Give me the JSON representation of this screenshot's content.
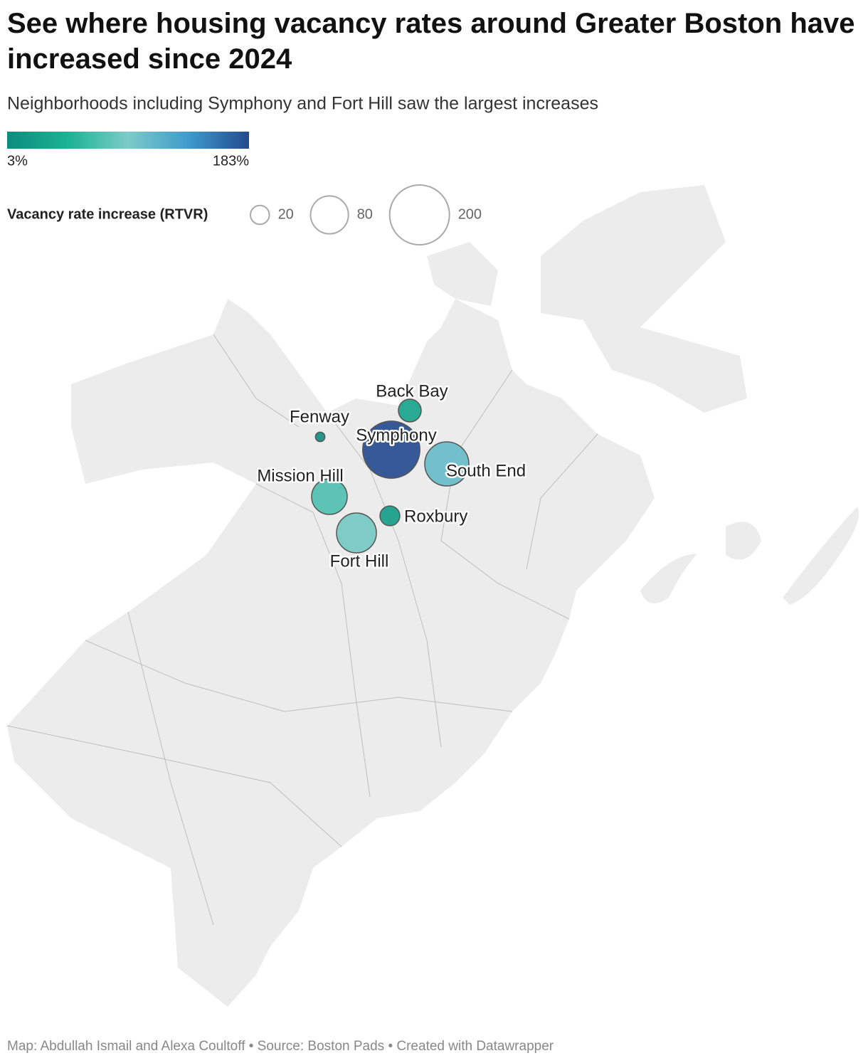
{
  "chart_data": {
    "type": "symbol-map",
    "title": "See where housing vacancy rates around Greater Boston have increased since 2024",
    "subtitle": "Neighborhoods including Symphony and Fort Hill saw the largest increases",
    "color_scale": [
      "#0b8c7e",
      "#1bb394",
      "#7ccbc8",
      "#3d9bcc",
      "#23498f"
    ],
    "color_legend": {
      "min": {
        "value": 3,
        "label": "3%"
      },
      "max": {
        "value": 183,
        "label": "183%"
      }
    },
    "size_legend": {
      "title": "Vacancy rate increase (RTVR)",
      "values": [
        20,
        80,
        200
      ]
    },
    "categories": [
      "Back Bay",
      "Fenway",
      "Symphony",
      "South End",
      "Mission Hill",
      "Roxbury",
      "Fort Hill"
    ],
    "values": [
      29,
      5,
      183,
      109,
      71,
      22,
      89
    ],
    "footer": "Map: Abdullah Ismail and Alexa Coultoff • Source: Boston Pads • Created with Datawrapper"
  }
}
